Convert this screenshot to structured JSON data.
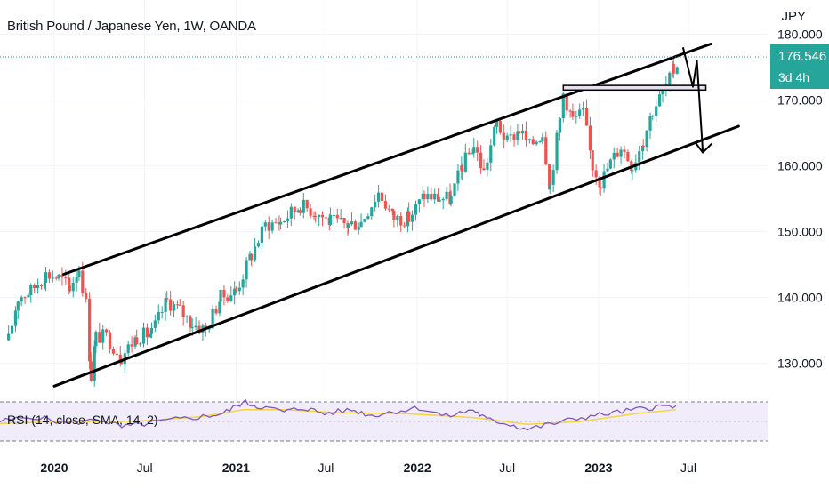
{
  "header": {
    "title": "British Pound / Japanese Yen, 1W, OANDA",
    "currency": "JPY"
  },
  "price_badge": {
    "price": "176.546",
    "countdown": "3d 4h"
  },
  "rsi": {
    "label": "RSI (14, close, SMA, 14, 2)"
  },
  "colors": {
    "up": "#26a69a",
    "down": "#ef5350",
    "rsi_line": "#7e57c2",
    "rsi_sma": "#f5d442",
    "rsi_band": "#f1ecfa",
    "price_line": "#26a69a"
  },
  "chart_data": {
    "type": "candlestick",
    "title": "British Pound / Japanese Yen, 1W, OANDA",
    "y_axis_unit": "JPY",
    "last_price": 176.546,
    "y_ticks": [
      "130.000",
      "140.000",
      "150.000",
      "160.000",
      "170.000",
      "180.000"
    ],
    "x_ticks": [
      "2020",
      "Jul",
      "2021",
      "Jul",
      "2022",
      "Jul",
      "2023",
      "Jul"
    ],
    "x_tick_dates": [
      "2020-01-01",
      "2020-07-01",
      "2021-01-01",
      "2021-07-01",
      "2022-01-01",
      "2022-07-01",
      "2023-01-01",
      "2023-07-01"
    ],
    "ylim": [
      125,
      180
    ],
    "grid": true,
    "close_series": [
      [
        "2019-10-01",
        133.5
      ],
      [
        "2019-10-20",
        140.0
      ],
      [
        "2019-11-15",
        141.0
      ],
      [
        "2019-12-15",
        143.5
      ],
      [
        "2020-01-10",
        143.0
      ],
      [
        "2020-02-01",
        141.5
      ],
      [
        "2020-02-20",
        144.5
      ],
      [
        "2020-03-05",
        139.0
      ],
      [
        "2020-03-15",
        128.0
      ],
      [
        "2020-03-25",
        134.0
      ],
      [
        "2020-04-15",
        134.0
      ],
      [
        "2020-05-15",
        131.0
      ],
      [
        "2020-06-15",
        134.0
      ],
      [
        "2020-07-15",
        134.5
      ],
      [
        "2020-08-15",
        139.5
      ],
      [
        "2020-09-10",
        138.0
      ],
      [
        "2020-10-05",
        136.0
      ],
      [
        "2020-11-01",
        135.0
      ],
      [
        "2020-12-01",
        140.0
      ],
      [
        "2021-01-01",
        141.0
      ],
      [
        "2021-02-01",
        146.5
      ],
      [
        "2021-03-01",
        151.0
      ],
      [
        "2021-04-01",
        151.5
      ],
      [
        "2021-05-10",
        154.0
      ],
      [
        "2021-06-10",
        153.0
      ],
      [
        "2021-07-10",
        151.5
      ],
      [
        "2021-08-15",
        151.0
      ],
      [
        "2021-09-10",
        151.5
      ],
      [
        "2021-10-15",
        156.0
      ],
      [
        "2021-11-15",
        152.0
      ],
      [
        "2021-12-15",
        152.0
      ],
      [
        "2022-01-15",
        155.5
      ],
      [
        "2022-02-15",
        155.0
      ],
      [
        "2022-03-10",
        155.0
      ],
      [
        "2022-04-01",
        160.0
      ],
      [
        "2022-04-25",
        163.0
      ],
      [
        "2022-05-15",
        159.0
      ],
      [
        "2022-06-10",
        166.5
      ],
      [
        "2022-07-01",
        163.5
      ],
      [
        "2022-07-25",
        165.5
      ],
      [
        "2022-08-15",
        163.0
      ],
      [
        "2022-09-10",
        165.0
      ],
      [
        "2022-09-25",
        157.0
      ],
      [
        "2022-10-15",
        167.0
      ],
      [
        "2022-10-22",
        171.0
      ],
      [
        "2022-11-10",
        167.0
      ],
      [
        "2022-12-01",
        168.0
      ],
      [
        "2022-12-20",
        160.0
      ],
      [
        "2023-01-05",
        157.5
      ],
      [
        "2023-01-25",
        160.5
      ],
      [
        "2023-02-15",
        163.0
      ],
      [
        "2023-03-10",
        160.0
      ],
      [
        "2023-04-01",
        164.0
      ],
      [
        "2023-04-20",
        168.5
      ],
      [
        "2023-05-10",
        171.0
      ],
      [
        "2023-06-01",
        174.5
      ],
      [
        "2023-06-14",
        176.546
      ]
    ],
    "drawings": {
      "channel_upper": [
        [
          "2020-01-20",
          143.5
        ],
        [
          "2023-08-15",
          178.5
        ]
      ],
      "channel_lower": [
        [
          "2020-01-01",
          126.5
        ],
        [
          "2023-10-10",
          166.0
        ]
      ],
      "resistance_zone": [
        [
          "2022-10-22",
          171.5
        ],
        [
          "2023-08-05",
          172.2
        ]
      ],
      "projection_path": [
        [
          "2023-06-20",
          178.0
        ],
        [
          "2023-07-10",
          172.0
        ],
        [
          "2023-07-18",
          176.0
        ],
        [
          "2023-07-30",
          162.0
        ]
      ]
    },
    "indicators": [
      {
        "name": "RSI (14, close, SMA, 14, 2)",
        "upper_band": 70,
        "lower_band": 30,
        "rsi_series": [
          [
            0,
            50
          ],
          [
            0.05,
            55
          ],
          [
            0.1,
            48
          ],
          [
            0.15,
            52
          ],
          [
            0.18,
            44
          ],
          [
            0.22,
            48
          ],
          [
            0.26,
            52
          ],
          [
            0.3,
            55
          ],
          [
            0.33,
            58
          ],
          [
            0.36,
            70
          ],
          [
            0.38,
            66
          ],
          [
            0.42,
            60
          ],
          [
            0.45,
            64
          ],
          [
            0.48,
            58
          ],
          [
            0.52,
            62
          ],
          [
            0.55,
            56
          ],
          [
            0.58,
            60
          ],
          [
            0.62,
            64
          ],
          [
            0.66,
            55
          ],
          [
            0.7,
            62
          ],
          [
            0.72,
            52
          ],
          [
            0.75,
            48
          ],
          [
            0.78,
            42
          ],
          [
            0.82,
            48
          ],
          [
            0.86,
            54
          ],
          [
            0.9,
            58
          ],
          [
            0.94,
            62
          ],
          [
            0.97,
            65
          ],
          [
            1,
            66
          ]
        ],
        "sma_series": [
          [
            0,
            48
          ],
          [
            0.1,
            50
          ],
          [
            0.2,
            50
          ],
          [
            0.3,
            55
          ],
          [
            0.36,
            62
          ],
          [
            0.42,
            62
          ],
          [
            0.5,
            59
          ],
          [
            0.6,
            58
          ],
          [
            0.7,
            54
          ],
          [
            0.78,
            47
          ],
          [
            0.86,
            50
          ],
          [
            0.94,
            58
          ],
          [
            1,
            62
          ]
        ]
      }
    ]
  }
}
